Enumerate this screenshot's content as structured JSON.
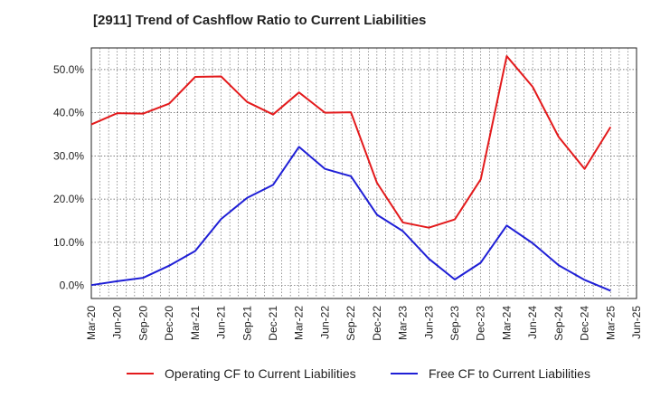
{
  "title": "[2911]  Trend of Cashflow Ratio to Current Liabilities",
  "legend": {
    "operating_label": "Operating CF to Current Liabilities",
    "free_label": "Free CF to Current Liabilities"
  },
  "colors": {
    "operating": "#e31a1c",
    "free": "#1f1fd6",
    "grid": "#555555"
  },
  "chart_data": {
    "type": "line",
    "title": "[2911]  Trend of Cashflow Ratio to Current Liabilities",
    "xlabel": "",
    "ylabel": "",
    "x_ticks": [
      "Mar-20",
      "Jun-20",
      "Sep-20",
      "Dec-20",
      "Mar-21",
      "Jun-21",
      "Sep-21",
      "Dec-21",
      "Mar-22",
      "Jun-22",
      "Sep-22",
      "Dec-22",
      "Mar-23",
      "Jun-23",
      "Sep-23",
      "Dec-23",
      "Mar-24",
      "Jun-24",
      "Sep-24",
      "Dec-24",
      "Mar-25",
      "Jun-25"
    ],
    "y_ticks": [
      "0.0%",
      "10.0%",
      "20.0%",
      "30.0%",
      "40.0%",
      "50.0%"
    ],
    "ylim": [
      -3,
      55
    ],
    "grid": true,
    "legend_position": "bottom",
    "x": [
      "Mar-20",
      "Jun-20",
      "Sep-20",
      "Dec-20",
      "Mar-21",
      "Jun-21",
      "Sep-21",
      "Dec-21",
      "Mar-22",
      "Jun-22",
      "Sep-22",
      "Dec-22",
      "Mar-23",
      "Jun-23",
      "Sep-23",
      "Dec-23",
      "Mar-24",
      "Jun-24",
      "Sep-24",
      "Dec-24",
      "Mar-25"
    ],
    "series": [
      {
        "name": "Operating CF to Current Liabilities",
        "values": [
          37.3,
          39.9,
          39.8,
          42.1,
          48.3,
          48.4,
          42.5,
          39.6,
          44.7,
          40.0,
          40.1,
          23.8,
          14.6,
          13.4,
          15.3,
          24.6,
          53.1,
          46.0,
          34.4,
          27.0,
          36.7
        ]
      },
      {
        "name": "Free CF to Current Liabilities",
        "values": [
          0.1,
          1.0,
          1.8,
          4.6,
          8.0,
          15.4,
          20.3,
          23.3,
          32.1,
          27.0,
          25.3,
          16.4,
          12.6,
          6.2,
          1.4,
          5.3,
          13.9,
          9.8,
          4.7,
          1.3,
          -1.2
        ]
      }
    ]
  }
}
